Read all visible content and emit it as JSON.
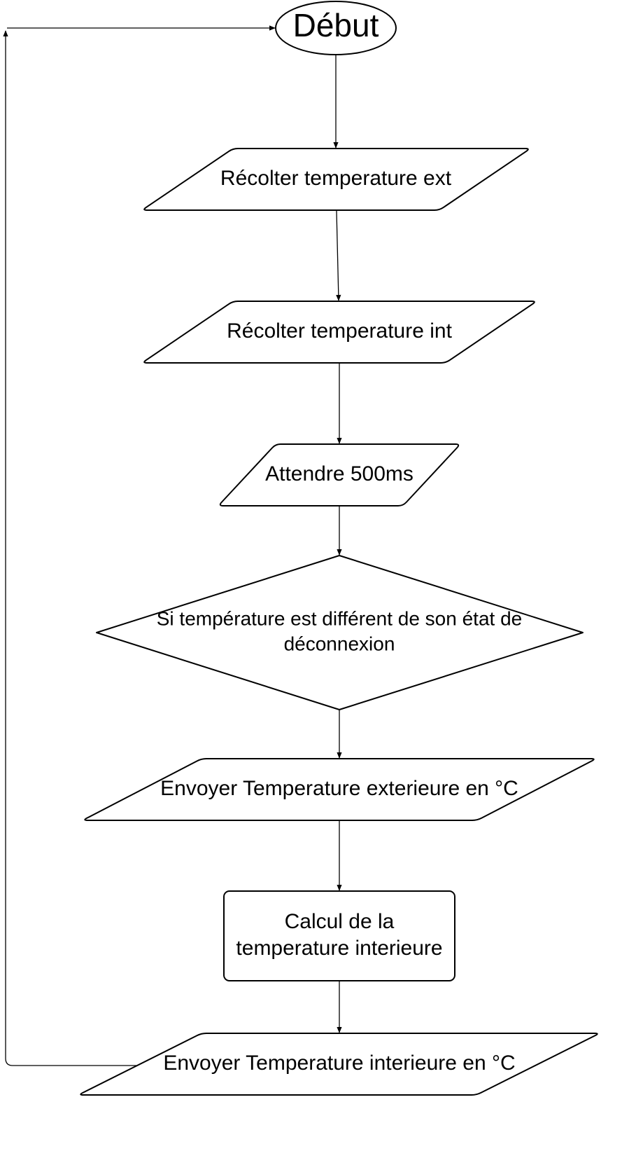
{
  "diagram": {
    "type": "flowchart",
    "stroke_color": "#000000",
    "fill_color": "#ffffff",
    "nodes": [
      {
        "id": "start",
        "shape": "terminator",
        "lines": [
          "Début"
        ]
      },
      {
        "id": "read-ext",
        "shape": "parallelogram",
        "lines": [
          "Récolter temperature ext"
        ]
      },
      {
        "id": "read-int",
        "shape": "parallelogram",
        "lines": [
          "Récolter temperature int"
        ]
      },
      {
        "id": "wait",
        "shape": "parallelogram",
        "lines": [
          "Attendre 500ms"
        ]
      },
      {
        "id": "decision",
        "shape": "diamond",
        "lines": [
          "Si température est différent de son état de",
          "déconnexion"
        ]
      },
      {
        "id": "send-ext",
        "shape": "parallelogram",
        "lines": [
          "Envoyer Temperature exterieure en °C"
        ]
      },
      {
        "id": "compute",
        "shape": "rounded-rectangle",
        "lines": [
          "Calcul de la",
          "temperature interieure"
        ]
      },
      {
        "id": "send-int",
        "shape": "parallelogram",
        "lines": [
          "Envoyer Temperature interieure en °C"
        ]
      }
    ],
    "edges": [
      {
        "from": "start",
        "to": "read-ext"
      },
      {
        "from": "read-ext",
        "to": "read-int"
      },
      {
        "from": "read-int",
        "to": "wait"
      },
      {
        "from": "wait",
        "to": "decision"
      },
      {
        "from": "decision",
        "to": "send-ext"
      },
      {
        "from": "send-ext",
        "to": "compute"
      },
      {
        "from": "compute",
        "to": "send-int"
      },
      {
        "from": "send-int",
        "to": "start",
        "route": "loop-back-left"
      }
    ]
  }
}
